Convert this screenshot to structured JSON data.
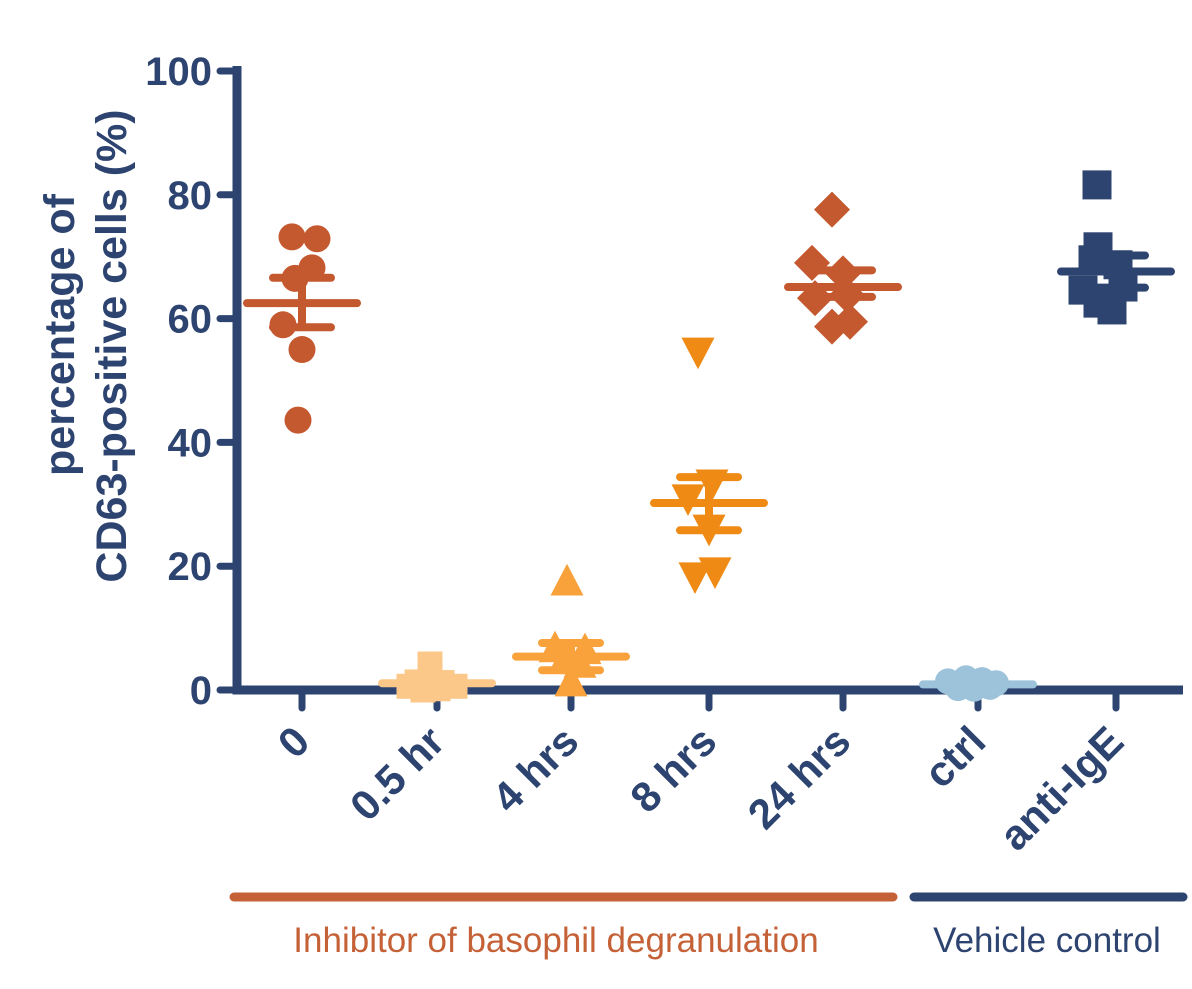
{
  "figure": {
    "background": "#FFFFFF",
    "axis_color": "#2E4470"
  },
  "chart_data": {
    "type": "scatter",
    "title": "",
    "ylabel": "percentage of CD63-positive cells (%)",
    "ylabel_lines": [
      "percentage of",
      "CD63-positive cells (%)"
    ],
    "xlabel": "",
    "ylim": [
      0,
      100
    ],
    "yticks": [
      0,
      20,
      40,
      60,
      80,
      100
    ],
    "grid": false,
    "legend": null,
    "groups": [
      {
        "label": "0",
        "marker": "circle",
        "color": "#C4582F",
        "size": 27,
        "mean": 62.5,
        "err_hi": 66.6,
        "err_lo": 58.6,
        "points": [
          [
            -10,
            73.2
          ],
          [
            15,
            72.9
          ],
          [
            10,
            68.2
          ],
          [
            -7,
            66.5
          ],
          [
            -19,
            59.0
          ],
          [
            0,
            55.0
          ],
          [
            -4,
            43.6
          ]
        ]
      },
      {
        "label": "0.5 hr",
        "marker": "square",
        "color": "#FBC88A",
        "size": 25,
        "mean": 1.1,
        "err_hi": null,
        "err_lo": null,
        "points": [
          [
            -7,
            4.2
          ],
          [
            -20,
            1.3
          ],
          [
            5,
            1.2
          ],
          [
            -28,
            0.6
          ],
          [
            18,
            0.6
          ],
          [
            -14,
            0.0
          ],
          [
            1,
            0.2
          ]
        ]
      },
      {
        "label": "4 hrs",
        "marker": "triangle-up",
        "color": "#F9A23C",
        "size": 33,
        "mean": 5.4,
        "err_hi": 7.6,
        "err_lo": 3.2,
        "points": [
          [
            -4,
            17.3
          ],
          [
            -16,
            6.5
          ],
          [
            14,
            6.2
          ],
          [
            -6,
            4.8
          ],
          [
            9,
            4.0
          ],
          [
            0,
            1.0
          ]
        ]
      },
      {
        "label": "8 hrs",
        "marker": "triangle-down",
        "color": "#EF8A15",
        "size": 33,
        "mean": 30.2,
        "err_hi": 34.4,
        "err_lo": 25.8,
        "points": [
          [
            -11,
            54.9
          ],
          [
            3,
            33.6
          ],
          [
            -21,
            31.2
          ],
          [
            0,
            26.3
          ],
          [
            6,
            19.4
          ],
          [
            -14,
            18.6
          ]
        ]
      },
      {
        "label": "24 hrs",
        "marker": "diamond",
        "color": "#C4582F",
        "size": 36,
        "mean": 65.1,
        "err_hi": 67.8,
        "err_lo": 63.5,
        "points": [
          [
            -11,
            77.6
          ],
          [
            -31,
            69.0
          ],
          [
            0,
            67.3
          ],
          [
            -28,
            63.3
          ],
          [
            4,
            63.8
          ],
          [
            -11,
            58.7
          ],
          [
            7,
            59.5
          ]
        ]
      },
      {
        "label": "ctrl",
        "marker": "circle",
        "color": "#9DC3DB",
        "size": 26,
        "mean": 0.9,
        "err_hi": null,
        "err_lo": null,
        "points": [
          [
            -30,
            1.4
          ],
          [
            -12,
            1.9
          ],
          [
            4,
            1.6
          ],
          [
            18,
            1.1
          ],
          [
            -20,
            0.3
          ],
          [
            -4,
            0.2
          ],
          [
            12,
            0.5
          ]
        ]
      },
      {
        "label": "anti-IgE",
        "marker": "square",
        "color": "#2E4470",
        "size": 29,
        "mean": 67.6,
        "err_hi": 70.2,
        "err_lo": 65.0,
        "points": [
          [
            -19,
            81.6
          ],
          [
            -18,
            71.6
          ],
          [
            -23,
            69.5
          ],
          [
            2,
            68.7
          ],
          [
            -33,
            64.6
          ],
          [
            7,
            65.1
          ],
          [
            -18,
            62.5
          ],
          [
            -4,
            61.4
          ]
        ]
      }
    ],
    "annotations": [
      {
        "label": "Inhibitor of basophil degranulation",
        "color": "#C56137",
        "group_span": [
          "0",
          "24 hrs"
        ]
      },
      {
        "label": "Vehicle control",
        "color": "#2E4470",
        "group_span": [
          "ctrl",
          "anti-IgE"
        ]
      }
    ]
  }
}
